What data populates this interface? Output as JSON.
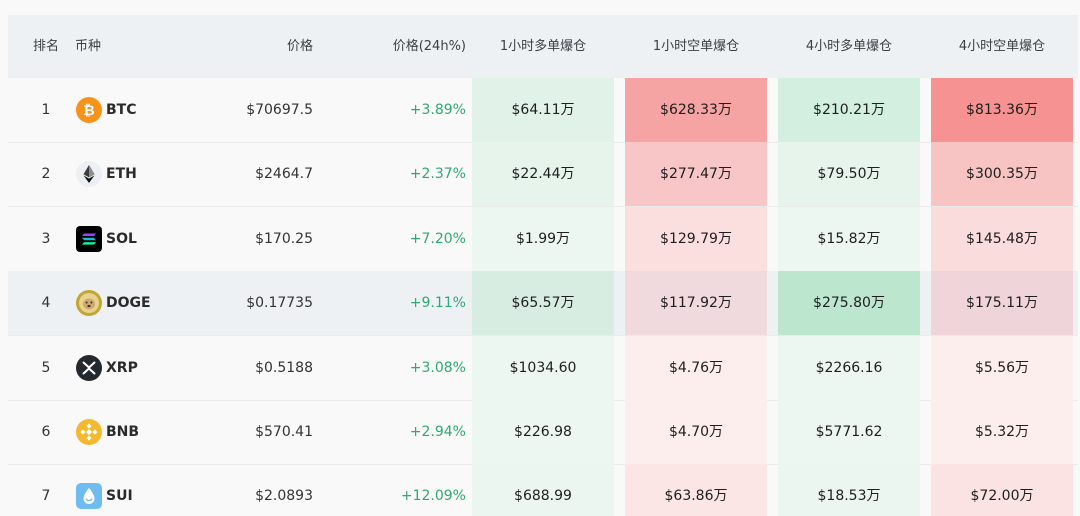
{
  "header": {
    "rank": "排名",
    "coin": "币种",
    "price": "价格",
    "change": "价格(24h%)",
    "long_1h": "1小时多单爆仓",
    "short_1h": "1小时空单爆仓",
    "long_4h": "4小时多单爆仓",
    "short_4h": "4小时空单爆仓"
  },
  "rows": [
    {
      "rank": "1",
      "symbol": "BTC",
      "icon": "bitcoin-icon",
      "price": "$70697.5",
      "change": "+3.89%",
      "long_1h": "$64.11万",
      "short_1h": "$628.33万",
      "long_4h": "$210.21万",
      "short_4h": "$813.36万"
    },
    {
      "rank": "2",
      "symbol": "ETH",
      "icon": "ethereum-icon",
      "price": "$2464.7",
      "change": "+2.37%",
      "long_1h": "$22.44万",
      "short_1h": "$277.47万",
      "long_4h": "$79.50万",
      "short_4h": "$300.35万"
    },
    {
      "rank": "3",
      "symbol": "SOL",
      "icon": "solana-icon",
      "price": "$170.25",
      "change": "+7.20%",
      "long_1h": "$1.99万",
      "short_1h": "$129.79万",
      "long_4h": "$15.82万",
      "short_4h": "$145.48万"
    },
    {
      "rank": "4",
      "symbol": "DOGE",
      "icon": "dogecoin-icon",
      "price": "$0.17735",
      "change": "+9.11%",
      "long_1h": "$65.57万",
      "short_1h": "$117.92万",
      "long_4h": "$275.80万",
      "short_4h": "$175.11万"
    },
    {
      "rank": "5",
      "symbol": "XRP",
      "icon": "xrp-icon",
      "price": "$0.5188",
      "change": "+3.08%",
      "long_1h": "$1034.60",
      "short_1h": "$4.76万",
      "long_4h": "$2266.16",
      "short_4h": "$5.56万"
    },
    {
      "rank": "6",
      "symbol": "BNB",
      "icon": "bnb-icon",
      "price": "$570.41",
      "change": "+2.94%",
      "long_1h": "$226.98",
      "short_1h": "$4.70万",
      "long_4h": "$5771.62",
      "short_4h": "$5.32万"
    },
    {
      "rank": "7",
      "symbol": "SUI",
      "icon": "sui-icon",
      "price": "$2.0893",
      "change": "+12.09%",
      "long_1h": "$688.99",
      "short_1h": "$63.86万",
      "long_4h": "$18.53万",
      "short_4h": "$72.00万"
    }
  ],
  "colors": {
    "positive_change": "#2fa872",
    "long_heat": [
      "#e1f2e8",
      "#e6f4ec",
      "#edf7f1",
      "#d8ede2",
      "#edf7f1",
      "#edf7f1",
      "#ecf6f0"
    ],
    "short_1h_heat": [
      "#f6a3a3",
      "#f8c6c6",
      "#fbdfdf",
      "#f1dadd",
      "#fdeeee",
      "#fdeeee",
      "#fbe5e5"
    ],
    "long_4h_heat": [
      "#d2efdf",
      "#e6f4ec",
      "#edf7f1",
      "#bde6cf",
      "#edf7f1",
      "#edf7f1",
      "#ecf6f0"
    ],
    "short_4h_heat": [
      "#f79292",
      "#f8c3c3",
      "#fbdcdc",
      "#efd5d9",
      "#fdeeee",
      "#fdeeee",
      "#fbe3e3"
    ]
  }
}
